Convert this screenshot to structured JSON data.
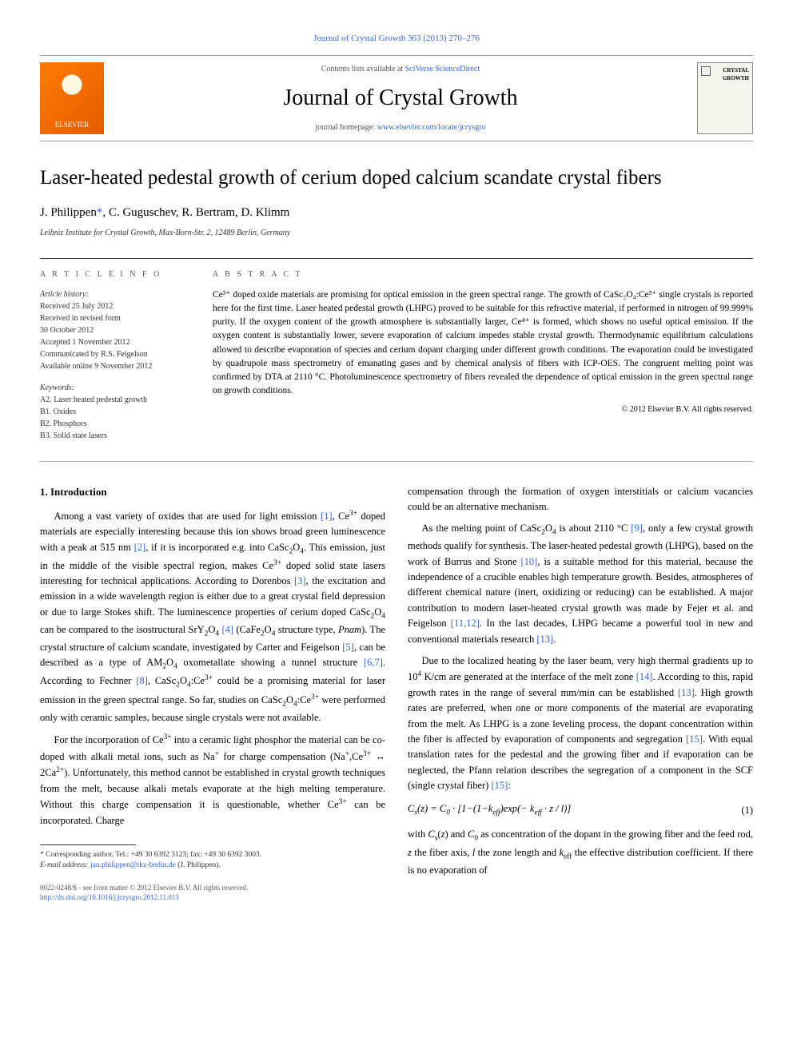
{
  "top_link": "Journal of Crystal Growth 363 (2013) 270–276",
  "header": {
    "contents_prefix": "Contents lists available at ",
    "contents_link": "SciVerse ScienceDirect",
    "journal_name": "Journal of Crystal Growth",
    "homepage_prefix": "journal homepage: ",
    "homepage_link": "www.elsevier.com/locate/jcrysgro",
    "publisher_label": "ELSEVIER",
    "cover_text": "CRYSTAL\nGROWTH"
  },
  "title": "Laser-heated pedestal growth of cerium doped calcium scandate crystal fibers",
  "authors": "J. Philippen *, C. Guguschev, R. Bertram, D. Klimm",
  "corr_mark": "*",
  "affiliation": "Leibniz Institute for Crystal Growth, Max-Born-Str. 2, 12489 Berlin, Germany",
  "article_info": {
    "heading": "A R T I C L E  I N F O",
    "history_label": "Article history:",
    "history": [
      "Received 25 July 2012",
      "Received in revised form",
      "30 October 2012",
      "Accepted 1 November 2012",
      "Communicated by R.S. Feigelson",
      "Available online 9 November 2012"
    ],
    "keywords_label": "Keywords:",
    "keywords": [
      "A2. Laser heated pedestal growth",
      "B1. Oxides",
      "B2. Phosphors",
      "B3. Solid state lasers"
    ]
  },
  "abstract": {
    "heading": "A B S T R A C T",
    "text": "Ce³⁺ doped oxide materials are promising for optical emission in the green spectral range. The growth of CaSc₂O₄:Ce³⁺ single crystals is reported here for the first time. Laser heated pedestal growth (LHPG) proved to be suitable for this refractive material, if performed in nitrogen of 99.999% purity. If the oxygen content of the growth atmosphere is substantially larger, Ce⁴⁺ is formed, which shows no useful optical emission. If the oxygen content is substantially lower, severe evaporation of calcium impedes stable crystal growth. Thermodynamic equilibrium calculations allowed to describe evaporation of species and cerium dopant charging under different growth conditions. The evaporation could be investigated by quadrupole mass spectrometry of emanating gases and by chemical analysis of fibers with ICP-OES. The congruent melting point was confirmed by DTA at 2110 °C. Photoluminescence spectrometry of fibers revealed the dependence of optical emission in the green spectral range on growth conditions.",
    "copyright": "© 2012 Elsevier B.V. All rights reserved."
  },
  "intro_heading": "1. Introduction",
  "left_col": {
    "p1": "Among a vast variety of oxides that are used for light emission [1], Ce³⁺ doped materials are especially interesting because this ion shows broad green luminescence with a peak at 515 nm [2], if it is incorporated e.g. into CaSc₂O₄. This emission, just in the middle of the visible spectral region, makes Ce³⁺ doped solid state lasers interesting for technical applications. According to Dorenbos [3], the excitation and emission in a wide wavelength region is either due to a great crystal field depression or due to large Stokes shift. The luminescence properties of cerium doped CaSc₂O₄ can be compared to the isostructural SrY₂O₄ [4] (CaFe₂O₄ structure type, Pnam). The crystal structure of calcium scandate, investigated by Carter and Feigelson [5], can be described as a type of AM₂O₄ oxometallate showing a tunnel structure [6,7]. According to Fechner [8], CaSc₂O₄:Ce³⁺ could be a promising material for laser emission in the green spectral range. So far, studies on CaSc₂O₄:Ce³⁺ were performed only with ceramic samples, because single crystals were not available.",
    "p2": "For the incorporation of Ce³⁺ into a ceramic light phosphor the material can be co-doped with alkali metal ions, such as Na⁺ for charge compensation (Na⁺,Ce³⁺ ↔ 2Ca²⁺). Unfortunately, this method cannot be established in crystal growth techniques from the melt, because alkali metals evaporate at the high melting temperature. Without this charge compensation it is questionable, whether Ce³⁺ can be incorporated. Charge"
  },
  "right_col": {
    "p1": "compensation through the formation of oxygen interstitials or calcium vacancies could be an alternative mechanism.",
    "p2": "As the melting point of CaSc₂O₄ is about 2110 °C [9], only a few crystal growth methods qualify for synthesis. The laser-heated pedestal growth (LHPG), based on the work of Burrus and Stone [10], is a suitable method for this material, because the independence of a crucible enables high temperature growth. Besides, atmospheres of different chemical nature (inert, oxidizing or reducing) can be established. A major contribution to modern laser-heated crystal growth was made by Fejer et al. and Feigelson [11,12]. In the last decades, LHPG became a powerful tool in new and conventional materials research [13].",
    "p3": "Due to the localized heating by the laser beam, very high thermal gradients up to 10⁴ K/cm are generated at the interface of the melt zone [14]. According to this, rapid growth rates in the range of several mm/min can be established [13]. High growth rates are preferred, when one or more components of the material are evaporating from the melt. As LHPG is a zone leveling process, the dopant concentration within the fiber is affected by evaporation of components and segregation [15]. With equal translation rates for the pedestal and the growing fiber and if evaporation can be neglected, the Pfann relation describes the segregation of a component in the SCF (single crystal fiber) [15]:",
    "eq": "Cₛ(z) = C₀ · [1 − (1 − k_eff) exp(− k_eff · z / l)]",
    "eq_num": "(1)",
    "p4": "with Cₛ(z) and C₀ as concentration of the dopant in the growing fiber and the feed rod, z the fiber axis, l the zone length and k_eff the effective distribution coefficient. If there is no evaporation of"
  },
  "footnote": {
    "line1": "* Corresponding author. Tel.: +49 30 6392 3123; fax: +49 30 6392 3003.",
    "line2": "E-mail address: jan.philippen@ikz-berlin.de (J. Philippen)."
  },
  "bottom": {
    "issn": "0022-0248/$ - see front matter © 2012 Elsevier B.V. All rights reserved.",
    "doi": "http://dx.doi.org/10.1016/j.jcrysgro.2012.11.013"
  },
  "colors": {
    "link": "#3366cc",
    "border": "#999999",
    "text": "#000000"
  }
}
